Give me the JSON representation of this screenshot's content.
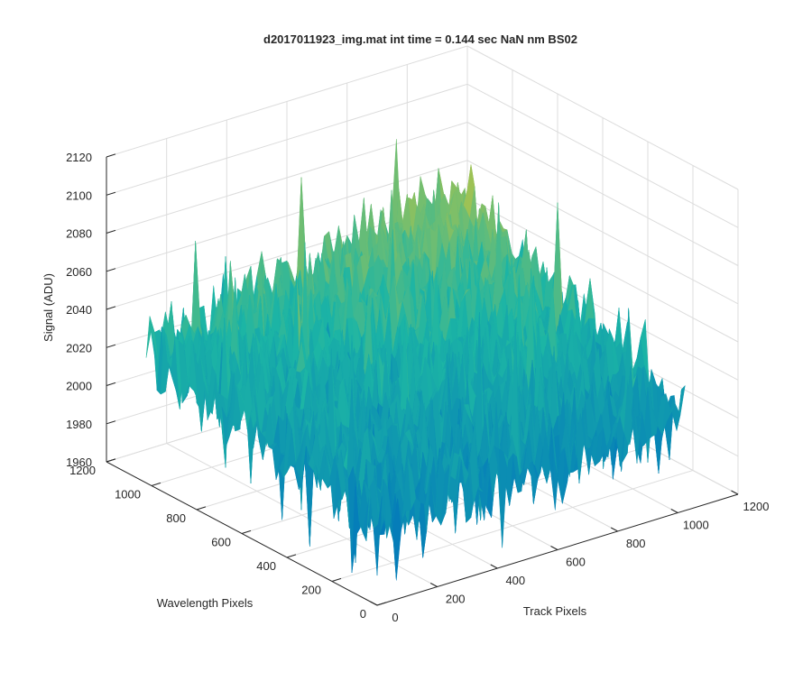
{
  "chart_data": {
    "type": "surface",
    "title": "d2017011923_img.mat int time = 0.144 sec  NaN nm BS02",
    "xlabel": "Track Pixels",
    "ylabel": "Wavelength Pixels",
    "zlabel": "Signal (ADU)",
    "xlim": [
      0,
      1200
    ],
    "ylim": [
      0,
      1200
    ],
    "zlim": [
      1960,
      2120
    ],
    "xticks": [
      "0",
      "200",
      "400",
      "600",
      "800",
      "1000",
      "1200"
    ],
    "yticks": [
      "0",
      "200",
      "400",
      "600",
      "800",
      "1000",
      "1200"
    ],
    "zticks": [
      "1960",
      "1980",
      "2000",
      "2020",
      "2040",
      "2060",
      "2080",
      "2100",
      "2120"
    ],
    "grid": true,
    "colormap": "parula",
    "colors": {
      "low": "#0072BD",
      "mid": "#1CB5A5",
      "high": "#D9C830"
    },
    "surface_extent": {
      "x": [
        0,
        1024
      ],
      "y": [
        0,
        1024
      ]
    },
    "surface_baseline_adu": 2025,
    "surface_corner_adu": {
      "x0_y0": 2005,
      "x1024_y0": 2010,
      "x0_y1024": 2030,
      "x1024_y1024": 2060
    },
    "surface_noise_adu": 12,
    "surface_spike_min_adu": 1970,
    "surface_spike_max_adu": 2100
  }
}
